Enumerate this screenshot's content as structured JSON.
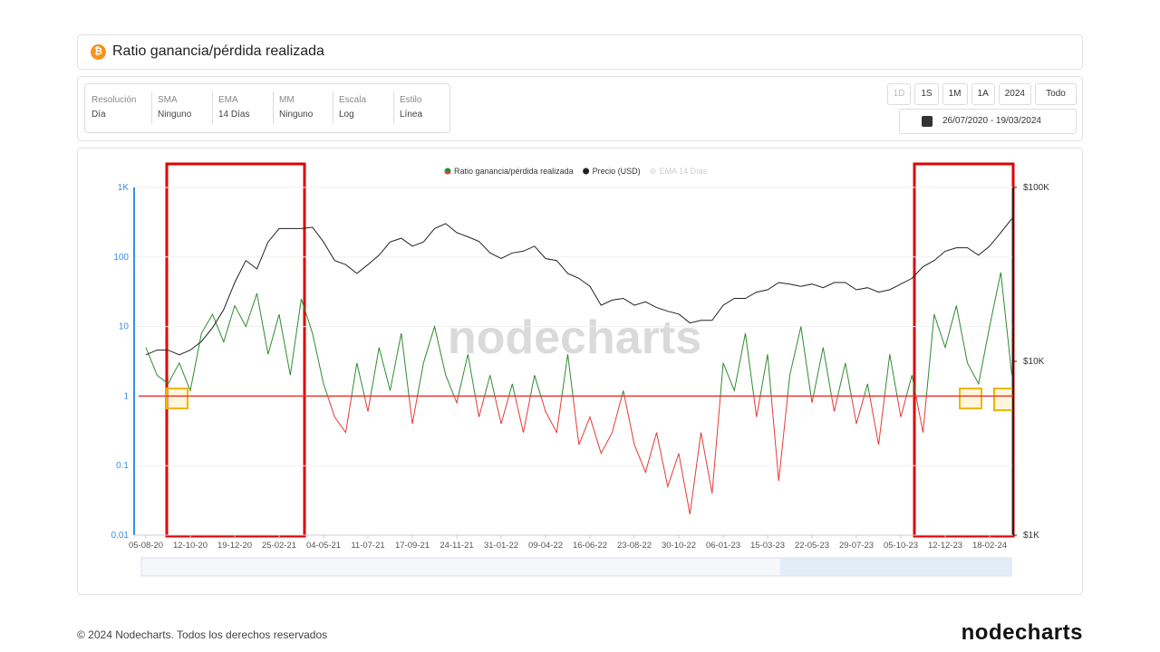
{
  "header": {
    "title": "Ratio ganancia/pérdida realizada"
  },
  "controls": {
    "settings": [
      {
        "label": "Resolución",
        "value": "Día"
      },
      {
        "label": "SMA",
        "value": "Ninguno"
      },
      {
        "label": "EMA",
        "value": "14 Días"
      },
      {
        "label": "MM",
        "value": "Ninguno"
      },
      {
        "label": "Escala",
        "value": "Log"
      },
      {
        "label": "Estilo",
        "value": "Línea"
      }
    ],
    "ranges": [
      "1D",
      "1S",
      "1M",
      "1A",
      "2024",
      "Todo"
    ],
    "date_range": "26/07/2020 - 19/03/2024"
  },
  "chart_data": {
    "type": "line",
    "watermark": "nodecharts",
    "log_scale": true,
    "threshold": 1,
    "categories": [
      "05-08-20",
      null,
      null,
      null,
      "12-10-20",
      null,
      null,
      null,
      "19-12-20",
      null,
      null,
      null,
      "25-02-21",
      null,
      null,
      null,
      "04-05-21",
      null,
      null,
      null,
      "11-07-21",
      null,
      null,
      null,
      "17-09-21",
      null,
      null,
      null,
      "24-11-21",
      null,
      null,
      null,
      "31-01-22",
      null,
      null,
      null,
      "09-04-22",
      null,
      null,
      null,
      "16-06-22",
      null,
      null,
      null,
      "23-08-22",
      null,
      null,
      null,
      "30-10-22",
      null,
      null,
      null,
      "06-01-23",
      null,
      null,
      null,
      "15-03-23",
      null,
      null,
      null,
      "22-05-23",
      null,
      null,
      null,
      "29-07-23",
      null,
      null,
      null,
      "05-10-23",
      null,
      null,
      null,
      "12-12-23",
      null,
      null,
      null,
      "18-02-24",
      null,
      null
    ],
    "series": [
      {
        "name": "Ratio ganancia/pérdida realizada",
        "color": "#2e8b2e",
        "color_below": "#e53935",
        "values": [
          5,
          2,
          1.5,
          3,
          1.2,
          8,
          15,
          6,
          20,
          10,
          30,
          4,
          15,
          2,
          25,
          8,
          1.5,
          0.5,
          0.3,
          3,
          0.6,
          5,
          1.2,
          8,
          0.4,
          3,
          10,
          2,
          0.8,
          4,
          0.5,
          2,
          0.4,
          1.5,
          0.3,
          2,
          0.6,
          0.3,
          4,
          0.2,
          0.5,
          0.15,
          0.3,
          1.2,
          0.2,
          0.08,
          0.3,
          0.05,
          0.15,
          0.02,
          0.3,
          0.04,
          3,
          1.2,
          8,
          0.5,
          4,
          0.06,
          2,
          10,
          0.8,
          5,
          0.6,
          3,
          0.4,
          1.5,
          0.2,
          4,
          0.5,
          2,
          0.3,
          15,
          5,
          20,
          3,
          1.5,
          10,
          60,
          2
        ]
      },
      {
        "name": "Precio (USD)",
        "color": "#222222",
        "axis": "y2",
        "values": [
          10900,
          11600,
          11600,
          10900,
          11600,
          13000,
          15600,
          19800,
          28400,
          38000,
          34000,
          48600,
          58000,
          58000,
          58000,
          59000,
          48600,
          38000,
          36000,
          32000,
          36000,
          40800,
          48600,
          51000,
          46000,
          48600,
          58000,
          62000,
          55000,
          52000,
          49000,
          42000,
          39000,
          42000,
          43000,
          46000,
          39000,
          38000,
          32000,
          30000,
          27000,
          21000,
          22500,
          23000,
          21000,
          22000,
          20400,
          19400,
          18700,
          16600,
          17200,
          17200,
          21000,
          23000,
          23000,
          25000,
          25800,
          28400,
          27800,
          27000,
          27800,
          26500,
          28400,
          28400,
          25800,
          26500,
          25000,
          25800,
          27800,
          30000,
          35000,
          38000,
          43000,
          45000,
          45000,
          40800,
          46000,
          55000,
          66000
        ]
      }
    ],
    "hidden_series": [
      {
        "name": "EMA 14 Días",
        "color": "#cccccc"
      }
    ],
    "ylim": [
      0.01,
      1000
    ],
    "yticks": [
      {
        "value": 1000,
        "label": "1K"
      },
      100,
      10,
      1,
      0.1,
      0.01
    ],
    "y2lim": [
      1000,
      100000
    ],
    "y2ticks": [
      {
        "value": 100000,
        "label": "$100K"
      },
      {
        "value": 10000,
        "label": "$10K"
      },
      {
        "value": 1000,
        "label": "$1K"
      }
    ],
    "threshold_color": "#e53935",
    "left_axis_color": "#3b8fe0",
    "right_axis_color": "#222222"
  },
  "footer": {
    "copyright": "© 2024 Nodecharts. Todos los derechos reservados",
    "logo": "nodecharts"
  }
}
